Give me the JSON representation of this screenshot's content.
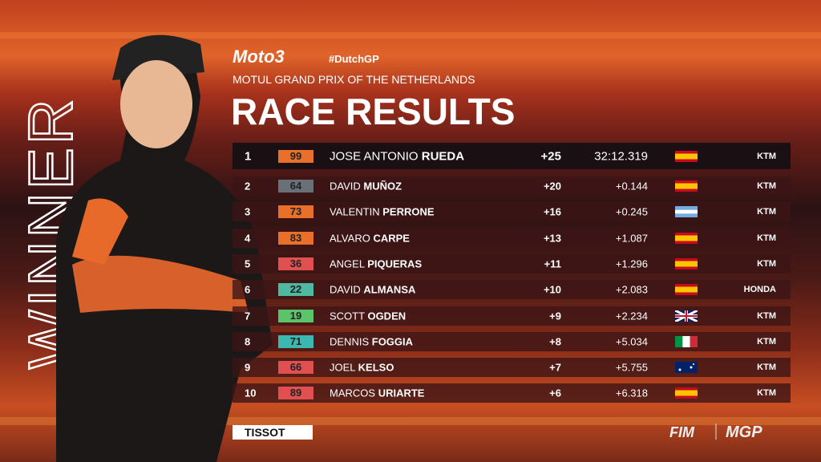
{
  "header": {
    "logo": "Moto3",
    "hashtag": "#DutchGP",
    "event": "MOTUL GRAND PRIX OF THE NETHERLANDS",
    "title": "RACE RESULTS",
    "side_label": "WINNER"
  },
  "table": {
    "rows": [
      {
        "pos": "1",
        "number": "99",
        "first": "JOSE ANTONIO",
        "last": "RUEDA",
        "points": "+25",
        "time": "32:12.319",
        "team": "KTM"
      },
      {
        "pos": "2",
        "number": "64",
        "first": "DAVID",
        "last": "MUÑOZ",
        "points": "+20",
        "time": "+0.144",
        "team": "KTM"
      },
      {
        "pos": "3",
        "number": "73",
        "first": "VALENTIN",
        "last": "PERRONE",
        "points": "+16",
        "time": "+0.245",
        "team": "KTM"
      },
      {
        "pos": "4",
        "number": "83",
        "first": "ALVARO",
        "last": "CARPE",
        "points": "+13",
        "time": "+1.087",
        "team": "KTM"
      },
      {
        "pos": "5",
        "number": "36",
        "first": "ANGEL",
        "last": "PIQUERAS",
        "points": "+11",
        "time": "+1.296",
        "team": "KTM"
      },
      {
        "pos": "6",
        "number": "22",
        "first": "DAVID",
        "last": "ALMANSA",
        "points": "+10",
        "time": "+2.083",
        "team": "HONDA"
      },
      {
        "pos": "7",
        "number": "19",
        "first": "SCOTT",
        "last": "OGDEN",
        "points": "+9",
        "time": "+2.234",
        "team": "KTM"
      },
      {
        "pos": "8",
        "number": "71",
        "first": "DENNIS",
        "last": "FOGGIA",
        "points": "+8",
        "time": "+5.034",
        "team": "KTM"
      },
      {
        "pos": "9",
        "number": "66",
        "first": "JOEL",
        "last": "KELSO",
        "points": "+7",
        "time": "+5.755",
        "team": "KTM"
      },
      {
        "pos": "10",
        "number": "89",
        "first": "MARCOS",
        "last": "URIARTE",
        "points": "+6",
        "time": "+6.318",
        "team": "KTM"
      }
    ]
  },
  "footer": {
    "sponsor": "TISSOT",
    "fim": "FIM",
    "mgp": "MGP"
  }
}
